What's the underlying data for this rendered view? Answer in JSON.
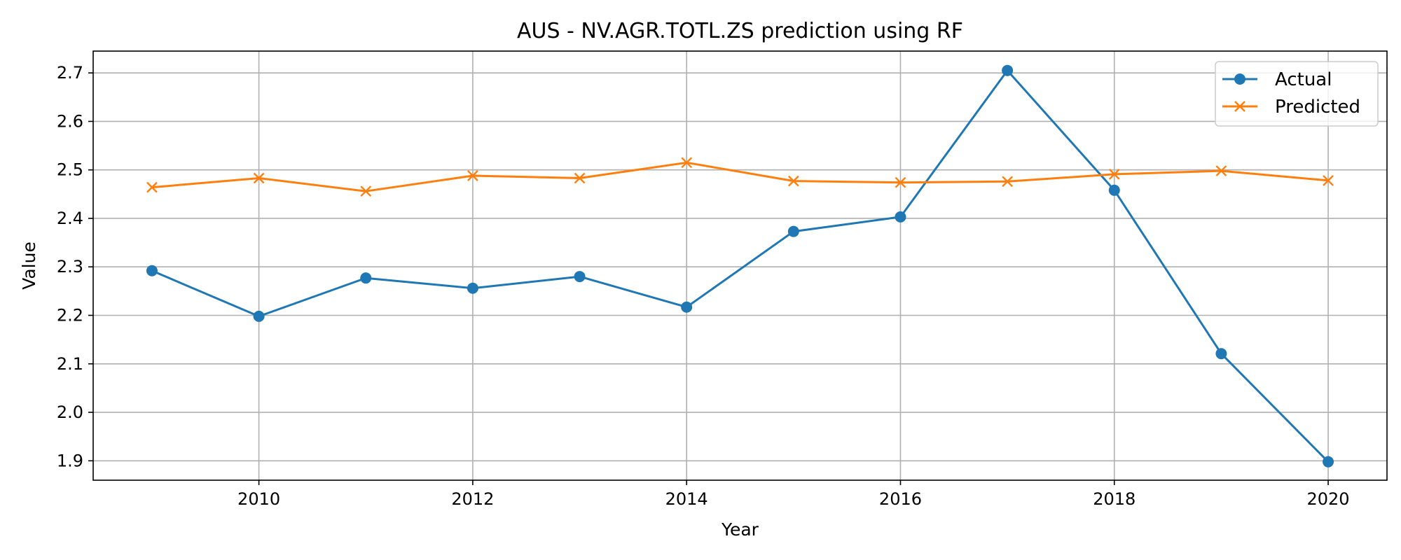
{
  "chart_data": {
    "type": "line",
    "title": "AUS - NV.AGR.TOTL.ZS prediction using RF",
    "xlabel": "Year",
    "ylabel": "Value",
    "x": [
      2009,
      2010,
      2011,
      2012,
      2013,
      2014,
      2015,
      2016,
      2017,
      2018,
      2019,
      2020
    ],
    "xlim": [
      2008.45,
      2020.55
    ],
    "ylim": [
      1.86,
      2.745
    ],
    "xticks": [
      2010,
      2012,
      2014,
      2016,
      2018,
      2020
    ],
    "yticks": [
      1.9,
      2.0,
      2.1,
      2.2,
      2.3,
      2.4,
      2.5,
      2.6,
      2.7
    ],
    "xtick_labels": [
      "2010",
      "2012",
      "2014",
      "2016",
      "2018",
      "2020"
    ],
    "ytick_labels": [
      "1.9",
      "2.0",
      "2.1",
      "2.2",
      "2.3",
      "2.4",
      "2.5",
      "2.6",
      "2.7"
    ],
    "grid": true,
    "legend_position": "top-right",
    "series": [
      {
        "name": "Actual",
        "color": "#1f77b4",
        "marker": "circle",
        "values": [
          2.292,
          2.198,
          2.277,
          2.256,
          2.28,
          2.217,
          2.373,
          2.403,
          2.705,
          2.458,
          2.121,
          1.898
        ]
      },
      {
        "name": "Predicted",
        "color": "#ff7f0e",
        "marker": "x",
        "values": [
          2.464,
          2.483,
          2.456,
          2.488,
          2.483,
          2.515,
          2.477,
          2.474,
          2.476,
          2.491,
          2.498,
          2.478
        ]
      }
    ]
  }
}
